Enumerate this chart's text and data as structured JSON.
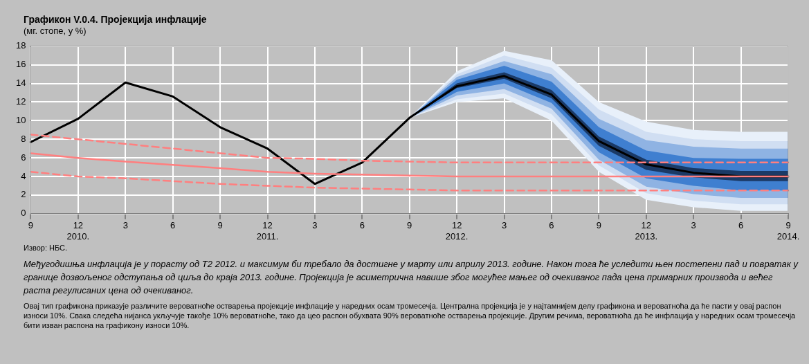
{
  "chart_data": {
    "type": "line",
    "title": "Графикон V.0.4. Пројекција инфлације",
    "subtitle": "(мг. стопе, у %)",
    "categories": [
      "9",
      "12\n2010.",
      "3",
      "6",
      "9",
      "12\n2011.",
      "3",
      "6",
      "9",
      "12\n2012.",
      "3",
      "6",
      "9",
      "12\n2013.",
      "3",
      "6",
      "9\n2014."
    ],
    "series": [
      {
        "color": "#e8f0fa",
        "values": [
          null,
          null,
          null,
          null,
          null,
          null,
          null,
          null,
          null,
          null,
          null,
          null,
          null,
          null,
          null,
          null,
          null
        ],
        "lower": [
          null,
          null,
          null,
          null,
          null,
          null,
          null,
          null,
          10.3,
          12.0,
          12.4,
          10.0,
          4.5,
          1.5,
          0.7,
          0.3,
          0.3
        ],
        "upper": [
          null,
          null,
          null,
          null,
          null,
          null,
          null,
          null,
          10.3,
          15.3,
          17.5,
          16.5,
          12.0,
          9.9,
          9.0,
          8.8,
          8.8
        ]
      },
      {
        "color": "#d0def2",
        "values": [
          null,
          null,
          null,
          null,
          null,
          null,
          null,
          null,
          null,
          null,
          null,
          null,
          null,
          null,
          null,
          null,
          null
        ],
        "lower": [
          null,
          null,
          null,
          null,
          null,
          null,
          null,
          null,
          10.3,
          12.3,
          12.9,
          10.7,
          5.2,
          2.2,
          1.4,
          1.0,
          1.0
        ],
        "upper": [
          null,
          null,
          null,
          null,
          null,
          null,
          null,
          null,
          10.3,
          15.0,
          17.0,
          15.7,
          11.2,
          8.8,
          8.0,
          7.8,
          7.8
        ]
      },
      {
        "color": "#8fb3e3",
        "values": [
          null,
          null,
          null,
          null,
          null,
          null,
          null,
          null,
          null,
          null,
          null,
          null,
          null,
          null,
          null,
          null,
          null
        ],
        "lower": [
          null,
          null,
          null,
          null,
          null,
          null,
          null,
          null,
          10.3,
          12.7,
          13.4,
          11.3,
          5.8,
          2.9,
          2.1,
          1.7,
          1.7
        ],
        "upper": [
          null,
          null,
          null,
          null,
          null,
          null,
          null,
          null,
          10.3,
          14.7,
          16.4,
          15.0,
          10.2,
          7.9,
          7.2,
          7.0,
          7.0
        ]
      },
      {
        "color": "#3f7fd0",
        "values": [
          null,
          null,
          null,
          null,
          null,
          null,
          null,
          null,
          null,
          null,
          null,
          null,
          null,
          null,
          null,
          null,
          null
        ],
        "lower": [
          null,
          null,
          null,
          null,
          null,
          null,
          null,
          null,
          10.3,
          13.1,
          14.0,
          11.9,
          6.6,
          3.8,
          3.0,
          2.5,
          2.5
        ],
        "upper": [
          null,
          null,
          null,
          null,
          null,
          null,
          null,
          null,
          10.3,
          14.4,
          15.9,
          14.2,
          9.3,
          6.8,
          6.0,
          5.9,
          5.9
        ]
      },
      {
        "color": "#1b3a66",
        "values": [
          null,
          null,
          null,
          null,
          null,
          null,
          null,
          null,
          null,
          null,
          null,
          null,
          null,
          null,
          null,
          null,
          null
        ],
        "lower": [
          null,
          null,
          null,
          null,
          null,
          null,
          null,
          null,
          10.3,
          13.5,
          14.5,
          12.4,
          7.3,
          4.7,
          3.9,
          3.5,
          3.5
        ],
        "upper": [
          null,
          null,
          null,
          null,
          null,
          null,
          null,
          null,
          10.3,
          14.0,
          15.2,
          13.3,
          8.3,
          5.8,
          4.9,
          4.6,
          4.6
        ]
      },
      {
        "color": "#ff7f7f",
        "line_style": "solid",
        "values": [
          6.5,
          6.0,
          5.6,
          5.25,
          4.9,
          4.5,
          4.3,
          4.2,
          4.1,
          4.0,
          4.0,
          4.0,
          4.0,
          4.0,
          4.0,
          4.0,
          4.0
        ]
      },
      {
        "color": "#ff7f7f",
        "line_style": "dashed",
        "values": [
          8.5,
          8.0,
          7.5,
          7.0,
          6.5,
          6.0,
          5.9,
          5.7,
          5.6,
          5.5,
          5.5,
          5.5,
          5.5,
          5.5,
          5.5,
          5.5,
          5.5
        ]
      },
      {
        "color": "#ff7f7f",
        "line_style": "dashed",
        "values": [
          4.5,
          4.0,
          3.8,
          3.5,
          3.2,
          3.0,
          2.8,
          2.7,
          2.6,
          2.5,
          2.5,
          2.5,
          2.5,
          2.5,
          2.5,
          2.5,
          2.5
        ]
      },
      {
        "color": "#000000",
        "line_style": "solid",
        "values": [
          7.7,
          10.2,
          14.1,
          12.6,
          9.3,
          7.0,
          3.2,
          5.5,
          10.3,
          13.7,
          14.8,
          12.8,
          7.8,
          5.3,
          4.4,
          4.0,
          4.0
        ]
      }
    ],
    "ylim": [
      0,
      18
    ],
    "yticks": [
      0,
      2,
      4,
      6,
      8,
      10,
      12,
      14,
      16,
      18
    ],
    "grid": true,
    "legend": false,
    "marker": "none",
    "annotations": [
      "Извор: НБС.",
      "Међугодишња инфлација је у порасту од Т2 2012. и максимум би требало да достигне у марту или априлу 2013. године. Након тога ће уследити њен постепени пад и повратак у границе дозвољеног одступања од циља до краја 2013. године. Пројекција је асиметрична навише због могућег мањег од очекиваног пада цена примарних производа и већег раста регулисаних цена од очекиваног.",
      "Овај тип графикона приказује различите вероватноће остварења пројекције инфлације у наредних осам тромесечја. Централна пројекција је у најтамнијем делу графикона и вероватноћа да ће пасти у овај распон износи 10%. Свака следећа нијанса укључује такође 10% вероватноће, тако да цео распон обухвата 90% вероватноће остварења пројекције. Другим речима, вероватноћа да ће инфлација у наредних осам тромесечја бити изван распона на графикону износи 10%."
    ]
  }
}
